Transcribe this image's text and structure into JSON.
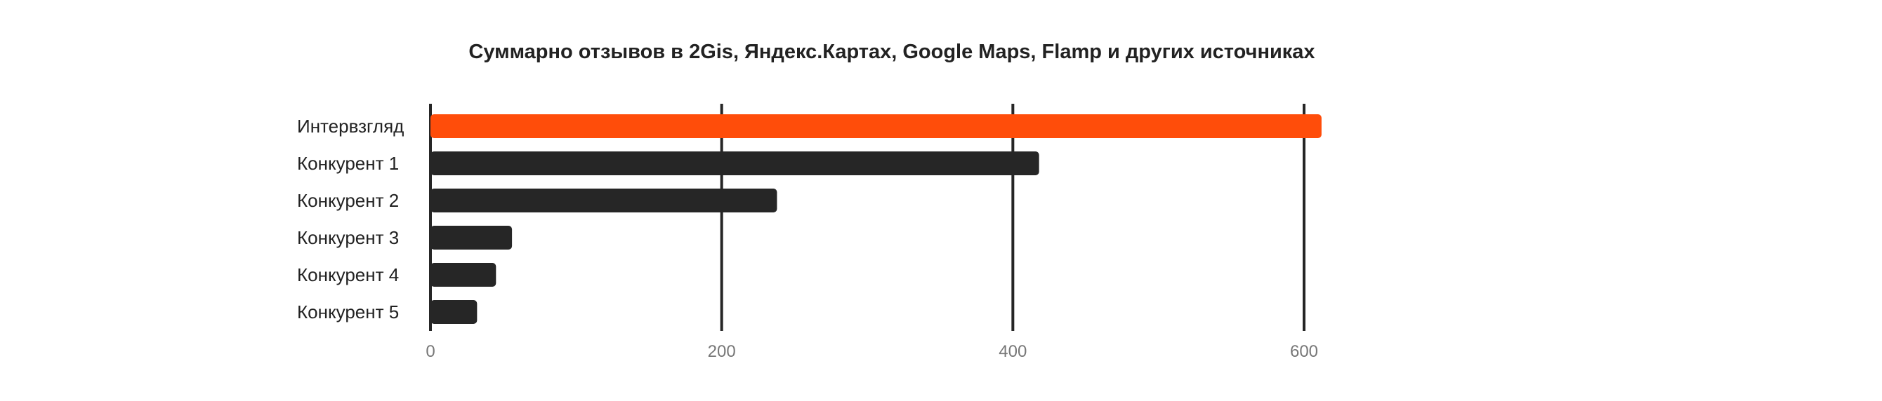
{
  "chart_data": {
    "type": "bar",
    "orientation": "horizontal",
    "title": "Суммарно отзывов в 2Gis, Яндекс.Картах, Google Maps, Flamp и других источниках",
    "xlabel": "",
    "ylabel": "",
    "categories": [
      "Интервзгляд",
      "Конкурент 1",
      "Конкурент 2",
      "Конкурент 3",
      "Конкурент 4",
      "Конкурент 5"
    ],
    "values": [
      612,
      418,
      238,
      56,
      45,
      32
    ],
    "xlim": [
      0,
      600
    ],
    "xticks": [
      "0",
      "200",
      "400",
      "600"
    ],
    "grid": true,
    "colors": {
      "highlight": "#ff4d0a",
      "default": "#262626",
      "grid": "#262626",
      "tick_text": "#777777",
      "label_text": "#222222"
    },
    "highlight_index": 0
  }
}
